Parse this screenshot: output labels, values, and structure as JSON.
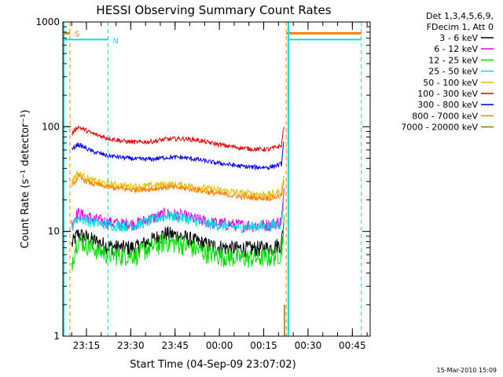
{
  "chart_data": {
    "type": "line",
    "title": "HESSI Observing Summary Count Rates",
    "xlabel": "Start Time (04-Sep-09 23:07:02)",
    "ylabel": "Count Rate (s⁻¹ detector⁻¹)",
    "yscale": "log",
    "ylim": [
      1,
      1000
    ],
    "x_unit": "minutes after 04-Sep-09 23:07:02",
    "xlim": [
      0,
      104
    ],
    "x_ticks": [
      {
        "label": "23:15",
        "x": 7.97
      },
      {
        "label": "23:30",
        "x": 22.97
      },
      {
        "label": "23:45",
        "x": 37.97
      },
      {
        "label": "00:00",
        "x": 52.97
      },
      {
        "label": "00:15",
        "x": 67.97
      },
      {
        "label": "00:30",
        "x": 82.97
      },
      {
        "label": "00:45",
        "x": 97.97
      }
    ],
    "y_ticks": [
      {
        "label": "1",
        "y": 1
      },
      {
        "label": "10",
        "y": 10
      },
      {
        "label": "100",
        "y": 100
      },
      {
        "label": "1000",
        "y": 1000
      }
    ],
    "legend": {
      "placement": "right",
      "header": [
        "Det 1,3,4,5,6,9,",
        "FDecim 1, Att 0"
      ]
    },
    "series": [
      {
        "name": "3 - 6 keV",
        "color": "#000000",
        "x": [
          3,
          5,
          10,
          15,
          20,
          25,
          30,
          35,
          40,
          45,
          50,
          55,
          60,
          65,
          70,
          74,
          75
        ],
        "values": [
          7.5,
          9.5,
          8.3,
          7.3,
          7.0,
          7.1,
          8.3,
          9.6,
          9.0,
          8.1,
          7.3,
          7.0,
          6.9,
          6.9,
          7.0,
          7.6,
          14
        ]
      },
      {
        "name": "6 - 12 keV",
        "color": "#e000e0",
        "x": [
          3,
          5,
          10,
          15,
          20,
          25,
          30,
          35,
          40,
          45,
          50,
          55,
          60,
          65,
          70,
          74,
          75
        ],
        "values": [
          12,
          15,
          13.2,
          12.3,
          11.8,
          11.9,
          13.3,
          14.8,
          14.2,
          13.1,
          12.2,
          11.8,
          11.5,
          11.5,
          11.6,
          12.5,
          25
        ]
      },
      {
        "name": "12 - 25 keV",
        "color": "#00dd00",
        "x": [
          3,
          5,
          10,
          15,
          20,
          25,
          30,
          35,
          40,
          45,
          50,
          55,
          60,
          65,
          70,
          74,
          75
        ],
        "values": [
          5,
          8.4,
          7.0,
          6.1,
          5.9,
          6.1,
          7.1,
          8.0,
          7.6,
          6.8,
          6.1,
          5.8,
          5.6,
          5.6,
          5.7,
          6.2,
          13
        ]
      },
      {
        "name": "25 - 50 keV",
        "color": "#00e0e0",
        "x": [
          3,
          5,
          10,
          15,
          20,
          25,
          30,
          35,
          40,
          45,
          50,
          55,
          60,
          65,
          70,
          74,
          75
        ],
        "values": [
          11,
          13.5,
          12.3,
          11.6,
          11.3,
          11.6,
          12.8,
          14.2,
          13.6,
          12.6,
          11.7,
          11.3,
          11.0,
          11.1,
          11.3,
          12.0,
          22
        ]
      },
      {
        "name": "50 - 100 keV",
        "color": "#e0c000",
        "x": [
          3,
          5,
          10,
          15,
          20,
          25,
          30,
          35,
          40,
          45,
          50,
          55,
          60,
          65,
          70,
          74,
          75
        ],
        "values": [
          30,
          36,
          30.5,
          28.3,
          27.3,
          26.8,
          27.3,
          28.3,
          27.8,
          26.8,
          25.4,
          24.3,
          23.3,
          22.8,
          22.5,
          24,
          36
        ]
      },
      {
        "name": "100 - 300 keV",
        "color": "#e00000",
        "x": [
          3,
          5,
          10,
          15,
          20,
          25,
          30,
          35,
          40,
          45,
          50,
          55,
          60,
          65,
          70,
          74,
          75
        ],
        "values": [
          85,
          100,
          86,
          78,
          73,
          71,
          72,
          76,
          77,
          75,
          70,
          66,
          63,
          61,
          61,
          66,
          110
        ]
      },
      {
        "name": "300 - 800 keV",
        "color": "#0000e0",
        "x": [
          3,
          5,
          10,
          15,
          20,
          25,
          30,
          35,
          40,
          45,
          50,
          55,
          60,
          65,
          70,
          74,
          75
        ],
        "values": [
          60,
          68,
          58,
          53,
          51,
          49,
          49,
          51,
          51,
          49,
          46,
          44,
          42,
          41,
          41,
          44,
          80
        ]
      },
      {
        "name": "800 - 7000 keV",
        "color": "#ff8000",
        "x": [
          3,
          5,
          10,
          15,
          20,
          25,
          30,
          35,
          40,
          45,
          50,
          55,
          60,
          65,
          70,
          74,
          75
        ],
        "values": [
          26,
          33,
          28.5,
          26.5,
          25.5,
          25,
          25.5,
          26.5,
          26,
          25,
          23.5,
          22.5,
          21.5,
          21,
          20.8,
          22,
          32
        ]
      },
      {
        "name": "7000 - 20000 keV",
        "color": "#808000",
        "x": [
          75,
          76
        ],
        "values": [
          2,
          2
        ]
      }
    ],
    "markers": [
      {
        "label": "S",
        "color": "#ff8000",
        "x_start": 0,
        "x_end": 2.4,
        "level": 780,
        "start_line": 2.4,
        "end_line": 75.6,
        "end_level": 780,
        "end_bar_to": 101
      },
      {
        "label": "N",
        "color": "#00e0e0",
        "x_start": 0,
        "x_end": 15.3,
        "level": 680,
        "start_line": 15.3,
        "end_line": 101,
        "end_level": 680,
        "end_bar_from": 76.3,
        "end_bar_to": 101,
        "solid_edges": [
          0,
          76.3
        ]
      }
    ],
    "grid": false
  },
  "footer": {
    "timestamp": "15-Mar-2010 15:09"
  }
}
